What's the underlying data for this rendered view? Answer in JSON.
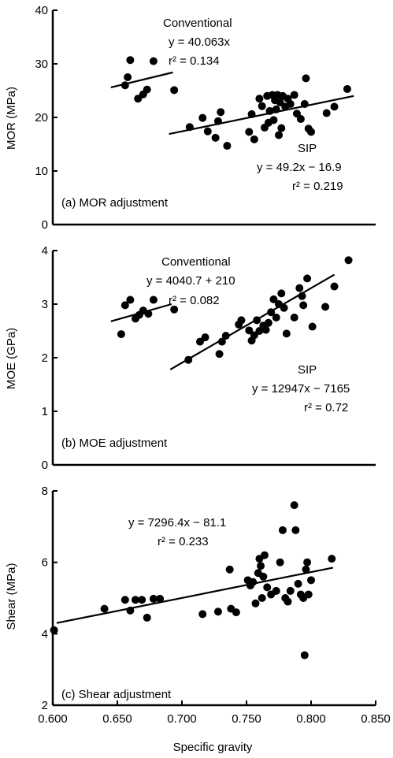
{
  "chart_data": [
    {
      "type": "scatter",
      "panel_label": "(a) MOR adjustment",
      "ylabel": "MOR (MPa)",
      "xlabel": "",
      "ylim": [
        0,
        40
      ],
      "yticks": [
        0,
        10,
        20,
        30,
        40
      ],
      "xlim": [
        0.6,
        0.85
      ],
      "series": [
        {
          "name": "Conventional",
          "points": [
            [
              0.656,
              26.0
            ],
            [
              0.658,
              27.5
            ],
            [
              0.66,
              30.7
            ],
            [
              0.666,
              23.5
            ],
            [
              0.67,
              24.3
            ],
            [
              0.673,
              25.2
            ],
            [
              0.678,
              30.5
            ],
            [
              0.694,
              25.1
            ]
          ],
          "fit": {
            "x": [
              0.645,
              0.693
            ],
            "y": [
              25.6,
              28.4
            ]
          }
        },
        {
          "name": "SIP",
          "points": [
            [
              0.706,
              18.2
            ],
            [
              0.716,
              19.9
            ],
            [
              0.72,
              17.4
            ],
            [
              0.726,
              16.2
            ],
            [
              0.728,
              19.3
            ],
            [
              0.73,
              21.0
            ],
            [
              0.735,
              14.7
            ],
            [
              0.752,
              17.3
            ],
            [
              0.754,
              20.6
            ],
            [
              0.756,
              15.9
            ],
            [
              0.76,
              23.5
            ],
            [
              0.762,
              22.1
            ],
            [
              0.764,
              18.1
            ],
            [
              0.766,
              24.0
            ],
            [
              0.767,
              19.0
            ],
            [
              0.768,
              21.2
            ],
            [
              0.77,
              24.2
            ],
            [
              0.771,
              19.5
            ],
            [
              0.772,
              23.2
            ],
            [
              0.773,
              21.5
            ],
            [
              0.774,
              24.2
            ],
            [
              0.775,
              16.7
            ],
            [
              0.776,
              22.8
            ],
            [
              0.777,
              18.0
            ],
            [
              0.778,
              24.0
            ],
            [
              0.78,
              22.0
            ],
            [
              0.782,
              23.5
            ],
            [
              0.784,
              22.5
            ],
            [
              0.787,
              24.2
            ],
            [
              0.789,
              20.7
            ],
            [
              0.792,
              19.7
            ],
            [
              0.795,
              22.5
            ],
            [
              0.796,
              27.3
            ],
            [
              0.798,
              17.9
            ],
            [
              0.8,
              17.3
            ],
            [
              0.812,
              20.8
            ],
            [
              0.818,
              22.0
            ],
            [
              0.828,
              25.3
            ]
          ],
          "fit": {
            "x": [
              0.69,
              0.833
            ],
            "y": [
              16.9,
              24.0
            ]
          }
        }
      ],
      "annotations": {
        "conv_name": "Conventional",
        "conv_eq": "y = 40.063x",
        "conv_r2": "r² = 0.134",
        "sip_name": "SIP",
        "sip_eq": "y = 49.2x − 16.9",
        "sip_r2": "r² = 0.219"
      }
    },
    {
      "type": "scatter",
      "panel_label": "(b) MOE adjustment",
      "ylabel": "MOE (GPa)",
      "xlabel": "",
      "ylim": [
        0,
        4
      ],
      "yticks": [
        0,
        1,
        2,
        3,
        4
      ],
      "xlim": [
        0.6,
        0.85
      ],
      "series": [
        {
          "name": "Conventional",
          "points": [
            [
              0.653,
              2.44
            ],
            [
              0.656,
              2.98
            ],
            [
              0.66,
              3.08
            ],
            [
              0.664,
              2.73
            ],
            [
              0.667,
              2.8
            ],
            [
              0.67,
              2.88
            ],
            [
              0.674,
              2.82
            ],
            [
              0.678,
              3.08
            ],
            [
              0.694,
              2.9
            ]
          ],
          "fit": {
            "x": [
              0.645,
              0.692
            ],
            "y": [
              2.68,
              3.0
            ]
          }
        },
        {
          "name": "SIP",
          "points": [
            [
              0.705,
              1.96
            ],
            [
              0.714,
              2.3
            ],
            [
              0.718,
              2.38
            ],
            [
              0.729,
              2.07
            ],
            [
              0.731,
              2.3
            ],
            [
              0.734,
              2.41
            ],
            [
              0.744,
              2.62
            ],
            [
              0.746,
              2.7
            ],
            [
              0.752,
              2.51
            ],
            [
              0.754,
              2.32
            ],
            [
              0.756,
              2.42
            ],
            [
              0.758,
              2.7
            ],
            [
              0.76,
              2.5
            ],
            [
              0.763,
              2.6
            ],
            [
              0.765,
              2.52
            ],
            [
              0.767,
              2.65
            ],
            [
              0.769,
              2.85
            ],
            [
              0.771,
              3.09
            ],
            [
              0.773,
              2.75
            ],
            [
              0.775,
              3.0
            ],
            [
              0.777,
              3.2
            ],
            [
              0.779,
              2.93
            ],
            [
              0.781,
              2.45
            ],
            [
              0.787,
              2.75
            ],
            [
              0.791,
              3.3
            ],
            [
              0.793,
              3.15
            ],
            [
              0.794,
              2.98
            ],
            [
              0.797,
              3.48
            ],
            [
              0.801,
              2.58
            ],
            [
              0.811,
              2.95
            ],
            [
              0.818,
              3.33
            ],
            [
              0.829,
              3.82
            ]
          ],
          "fit": {
            "x": [
              0.691,
              0.818
            ],
            "y": [
              1.78,
              3.55
            ]
          }
        }
      ],
      "annotations": {
        "conv_name": "Conventional",
        "conv_eq": "y = 4040.7 + 210",
        "conv_r2": "r² = 0.082",
        "sip_name": "SIP",
        "sip_eq": "y = 12947x − 7165",
        "sip_r2": "r² = 0.72"
      }
    },
    {
      "type": "scatter",
      "panel_label": "(c) Shear adjustment",
      "ylabel": "Shear (MPa)",
      "xlabel": "Specific gravity",
      "ylim": [
        2,
        8
      ],
      "yticks": [
        2,
        4,
        6,
        8
      ],
      "xlim": [
        0.6,
        0.85
      ],
      "xticks": [
        0.6,
        0.65,
        0.7,
        0.75,
        0.8,
        0.85
      ],
      "xtick_labels": [
        "0.600",
        "0.650",
        "0.700",
        "0.750",
        "0.800",
        "0.850"
      ],
      "series": [
        {
          "name": "",
          "points": [
            [
              0.601,
              4.1
            ],
            [
              0.64,
              4.7
            ],
            [
              0.656,
              4.95
            ],
            [
              0.66,
              4.65
            ],
            [
              0.664,
              4.95
            ],
            [
              0.669,
              4.95
            ],
            [
              0.673,
              4.45
            ],
            [
              0.678,
              4.98
            ],
            [
              0.683,
              4.98
            ],
            [
              0.716,
              4.55
            ],
            [
              0.728,
              4.62
            ],
            [
              0.737,
              5.8
            ],
            [
              0.738,
              4.7
            ],
            [
              0.742,
              4.6
            ],
            [
              0.751,
              5.5
            ],
            [
              0.753,
              5.35
            ],
            [
              0.755,
              5.45
            ],
            [
              0.757,
              4.85
            ],
            [
              0.759,
              5.7
            ],
            [
              0.76,
              6.1
            ],
            [
              0.761,
              5.9
            ],
            [
              0.762,
              5.0
            ],
            [
              0.763,
              5.6
            ],
            [
              0.764,
              6.2
            ],
            [
              0.766,
              5.3
            ],
            [
              0.769,
              5.1
            ],
            [
              0.773,
              5.2
            ],
            [
              0.776,
              6.0
            ],
            [
              0.778,
              6.9
            ],
            [
              0.78,
              5.0
            ],
            [
              0.782,
              4.9
            ],
            [
              0.784,
              5.2
            ],
            [
              0.787,
              7.6
            ],
            [
              0.788,
              6.9
            ],
            [
              0.79,
              5.4
            ],
            [
              0.792,
              5.1
            ],
            [
              0.794,
              5.0
            ],
            [
              0.795,
              3.4
            ],
            [
              0.796,
              5.8
            ],
            [
              0.797,
              6.0
            ],
            [
              0.798,
              5.1
            ],
            [
              0.8,
              5.5
            ],
            [
              0.816,
              6.1
            ]
          ],
          "fit": {
            "x": [
              0.603,
              0.817
            ],
            "y": [
              4.3,
              5.85
            ]
          }
        }
      ],
      "annotations": {
        "eq": "y = 7296.4x − 81.1",
        "r2": "r² = 0.233"
      }
    }
  ]
}
